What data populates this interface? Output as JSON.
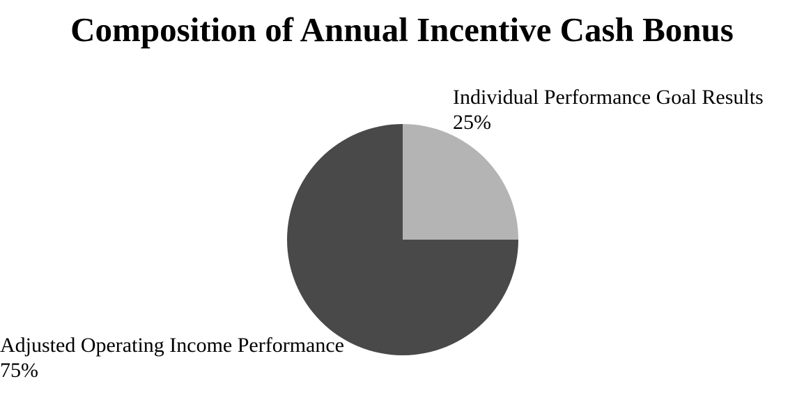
{
  "page": {
    "background": "#ffffff"
  },
  "chart_data": {
    "type": "pie",
    "title": "Composition of Annual Incentive Cash Bonus",
    "start_angle_deg": 0,
    "direction": "clockwise",
    "legend_position": "labels-adjacent-to-slices",
    "slices": [
      {
        "label": "Individual Performance Goal Results",
        "pct_label": "25%",
        "value": 25,
        "color": "#b4b4b4"
      },
      {
        "label": "Adjusted Operating Income Performance",
        "pct_label": "75%",
        "value": 75,
        "color": "#494949"
      }
    ]
  }
}
